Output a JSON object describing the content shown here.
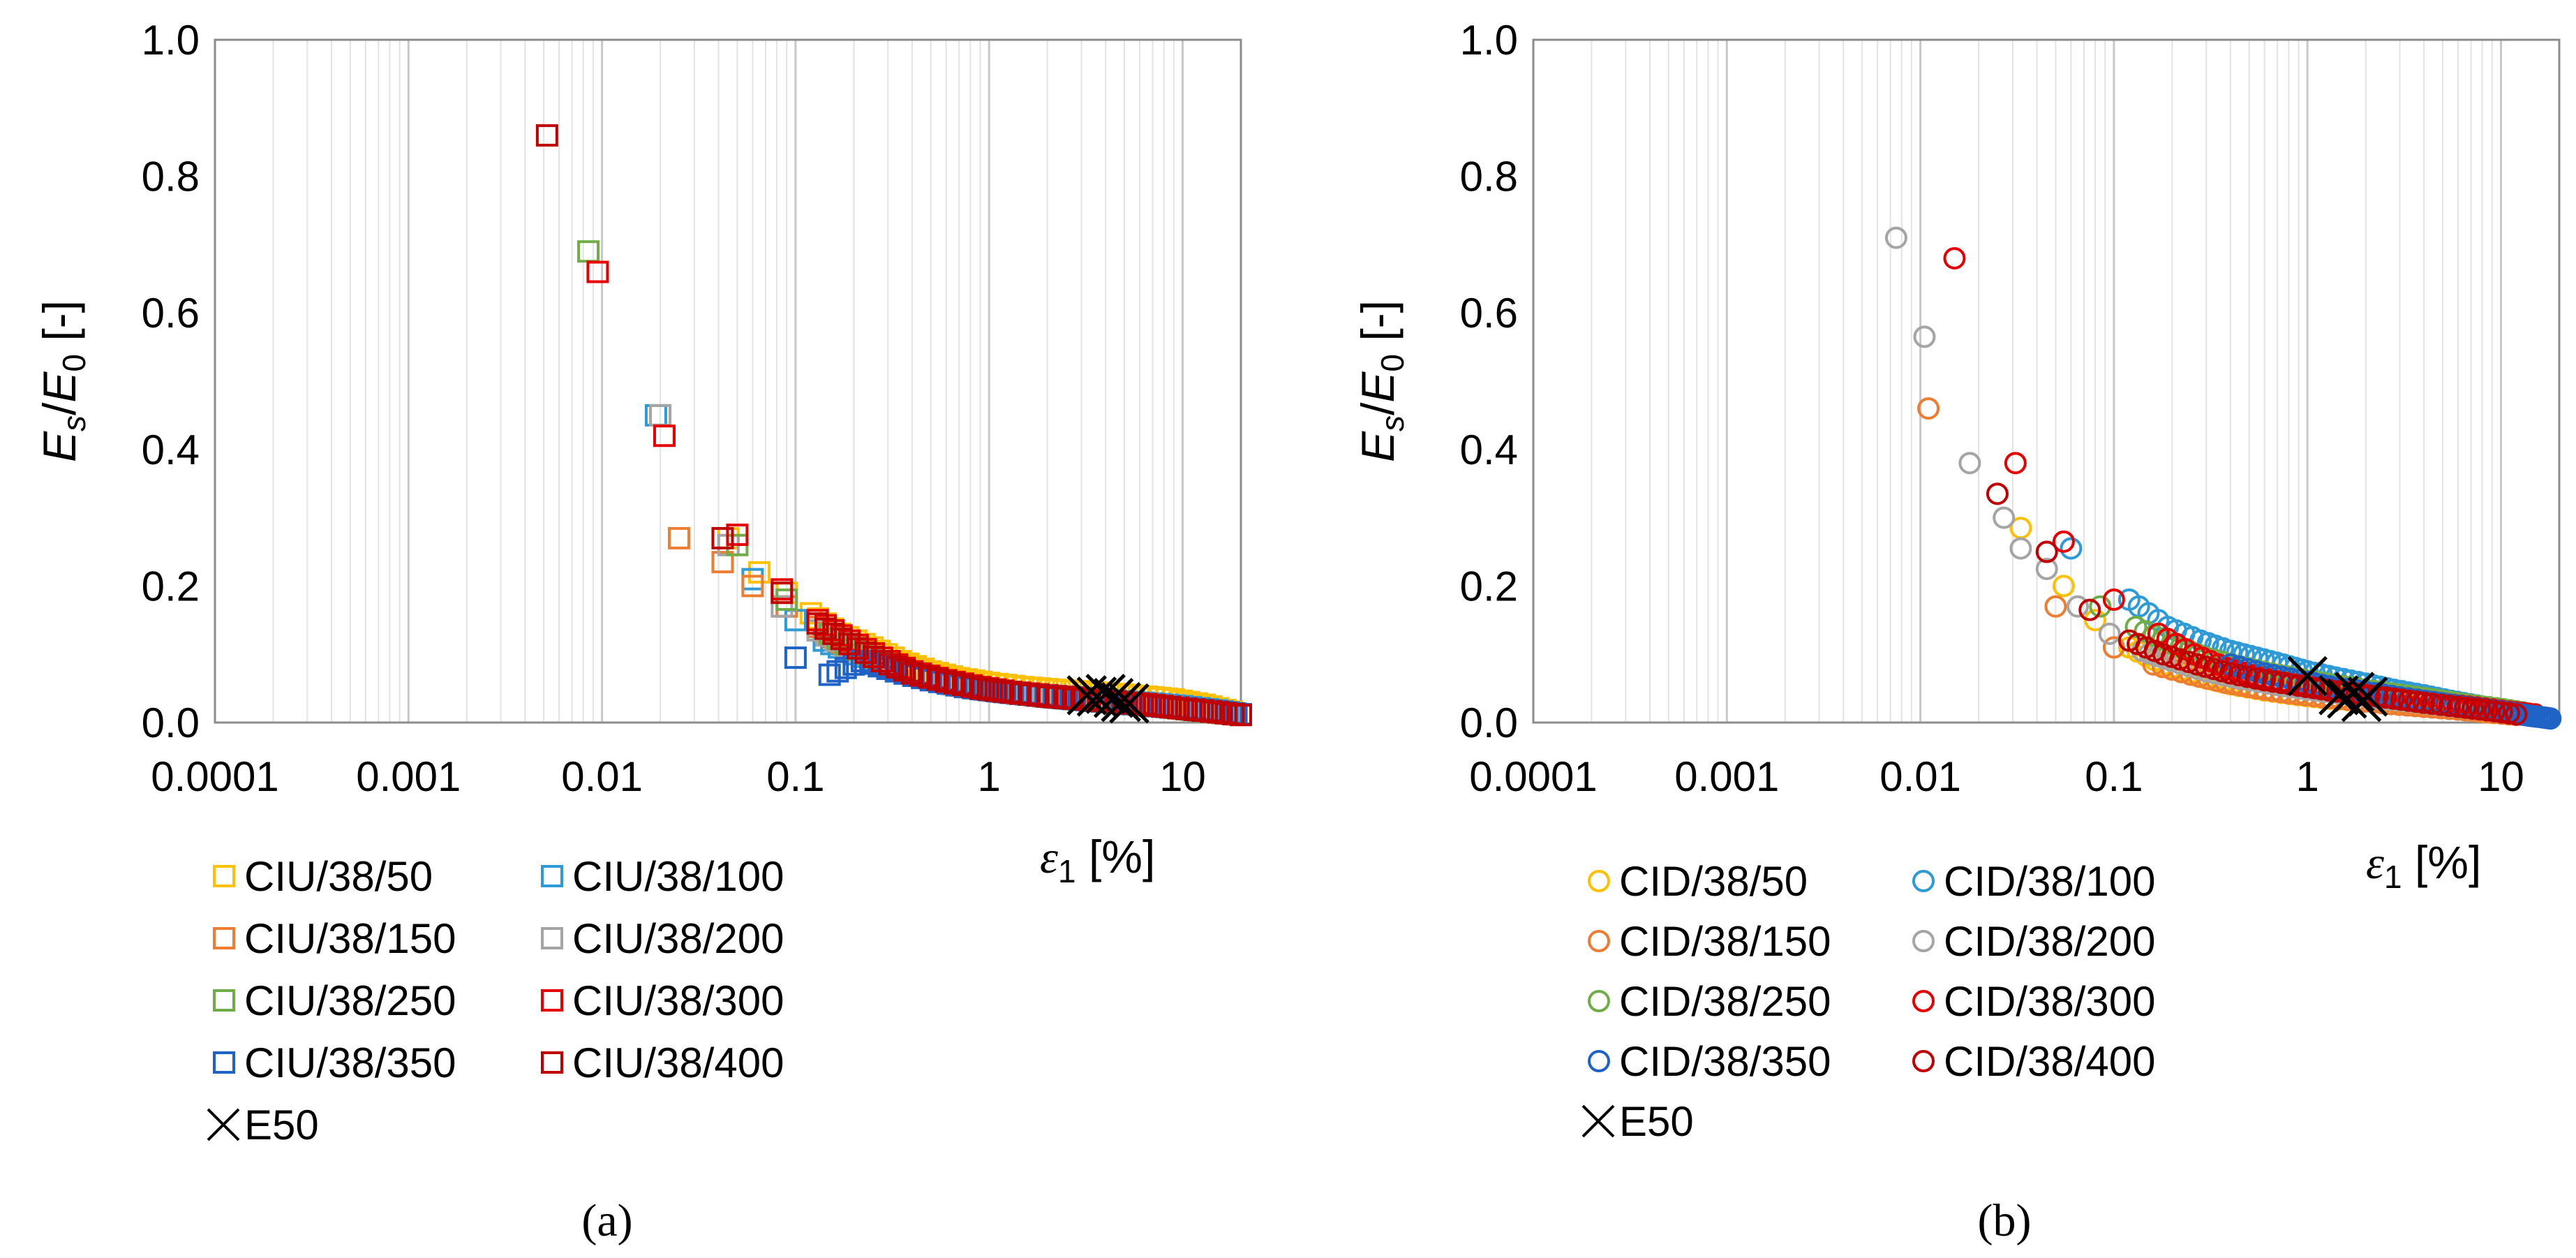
{
  "chart_data": [
    {
      "panel": "a",
      "caption": "(a)",
      "type": "scatter",
      "xscale": "log",
      "xlim": [
        0.0001,
        20
      ],
      "ylim": [
        0,
        1.0
      ],
      "x_ticks": [
        "0.0001",
        "0.001",
        "0.01",
        "0.1",
        "1",
        "10"
      ],
      "y_ticks": [
        "0.0",
        "0.2",
        "0.4",
        "0.6",
        "0.8",
        "1.0"
      ],
      "ylabel": "Es/E0 [-]",
      "xlabel": "ε1 [%]",
      "marker": "square",
      "legend": [
        "CIU/38/50",
        "CIU/38/100",
        "CIU/38/150",
        "CIU/38/200",
        "CIU/38/250",
        "CIU/38/300",
        "CIU/38/350",
        "CIU/38/400",
        "E50"
      ],
      "series": [
        {
          "name": "CIU/38/50",
          "color": "#FFC000",
          "x": [
            0.045,
            0.065,
            0.09,
            0.12,
            0.17,
            0.25,
            0.35,
            0.5,
            0.7,
            1.0,
            1.5,
            2.2,
            3.2,
            4.5,
            6.5,
            9,
            13,
            18
          ],
          "y": [
            0.27,
            0.22,
            0.19,
            0.16,
            0.13,
            0.11,
            0.09,
            0.075,
            0.065,
            0.058,
            0.052,
            0.048,
            0.045,
            0.042,
            0.038,
            0.034,
            0.026,
            0.016
          ]
        },
        {
          "name": "CIU/38/100",
          "color": "#2E9BD6",
          "x": [
            0.019,
            0.06,
            0.1,
            0.14,
            0.2,
            0.3,
            0.45,
            0.65,
            0.9,
            1.3,
            2,
            3,
            4.5,
            7,
            10,
            15,
            20
          ],
          "y": [
            0.45,
            0.21,
            0.15,
            0.12,
            0.1,
            0.085,
            0.07,
            0.058,
            0.05,
            0.044,
            0.04,
            0.036,
            0.032,
            0.028,
            0.024,
            0.018,
            0.012
          ]
        },
        {
          "name": "CIU/38/150",
          "color": "#ED7D31",
          "x": [
            0.025,
            0.042,
            0.06,
            0.09,
            0.13,
            0.19,
            0.28,
            0.4,
            0.6,
            0.85,
            1.2,
            1.8,
            2.6,
            3.8,
            5.5,
            8,
            12,
            18
          ],
          "y": [
            0.27,
            0.235,
            0.2,
            0.17,
            0.14,
            0.11,
            0.09,
            0.072,
            0.06,
            0.05,
            0.045,
            0.04,
            0.036,
            0.032,
            0.028,
            0.024,
            0.019,
            0.013
          ]
        },
        {
          "name": "CIU/38/200",
          "color": "#A5A5A5",
          "x": [
            0.02,
            0.045,
            0.085,
            0.13,
            0.2,
            0.3,
            0.45,
            0.65,
            0.95,
            1.4,
            2.1,
            3,
            4.5,
            6.5,
            9.5,
            14,
            19
          ],
          "y": [
            0.45,
            0.26,
            0.17,
            0.135,
            0.105,
            0.085,
            0.068,
            0.056,
            0.048,
            0.042,
            0.037,
            0.033,
            0.029,
            0.025,
            0.021,
            0.016,
            0.012
          ]
        },
        {
          "name": "CIU/38/250",
          "color": "#70AD47",
          "x": [
            0.0085,
            0.05,
            0.09,
            0.15,
            0.22,
            0.33,
            0.5,
            0.75,
            1.1,
            1.6,
            2.4,
            3.5,
            5,
            7.5,
            11,
            16
          ],
          "y": [
            0.69,
            0.26,
            0.18,
            0.13,
            0.1,
            0.08,
            0.065,
            0.054,
            0.046,
            0.041,
            0.036,
            0.032,
            0.028,
            0.024,
            0.019,
            0.014
          ]
        },
        {
          "name": "CIU/38/300",
          "color": "#E60000",
          "x": [
            0.0095,
            0.021,
            0.05,
            0.085,
            0.13,
            0.19,
            0.28,
            0.4,
            0.6,
            0.9,
            1.3,
            2,
            3,
            4.5,
            6.5,
            9.5,
            14,
            20
          ],
          "y": [
            0.66,
            0.42,
            0.275,
            0.195,
            0.15,
            0.12,
            0.095,
            0.075,
            0.062,
            0.052,
            0.045,
            0.04,
            0.035,
            0.031,
            0.027,
            0.022,
            0.017,
            0.012
          ]
        },
        {
          "name": "CIU/38/350",
          "color": "#1F63C6",
          "x": [
            0.1,
            0.15,
            0.22,
            0.33,
            0.5,
            0.75,
            1.1,
            1.6,
            2.4,
            3.5,
            5,
            7.5,
            11,
            16,
            20
          ],
          "y": [
            0.095,
            0.07,
            0.09,
            0.075,
            0.062,
            0.052,
            0.046,
            0.041,
            0.036,
            0.032,
            0.028,
            0.024,
            0.02,
            0.015,
            0.012
          ]
        },
        {
          "name": "CIU/38/400",
          "color": "#C00000",
          "x": [
            0.0052,
            0.042,
            0.085,
            0.13,
            0.19,
            0.28,
            0.4,
            0.6,
            0.9,
            1.3,
            2,
            3,
            4.5,
            6.5,
            9.5,
            14,
            20
          ],
          "y": [
            0.86,
            0.27,
            0.19,
            0.145,
            0.115,
            0.09,
            0.072,
            0.06,
            0.05,
            0.044,
            0.038,
            0.034,
            0.03,
            0.026,
            0.021,
            0.016,
            0.011
          ]
        },
        {
          "name": "E50",
          "color": "#000000",
          "marker": "x",
          "x": [
            3.2,
            3.6,
            4.0,
            4.4,
            4.8,
            5.3
          ],
          "y": [
            0.04,
            0.038,
            0.042,
            0.036,
            0.03,
            0.028
          ]
        }
      ]
    },
    {
      "panel": "b",
      "caption": "(b)",
      "type": "scatter",
      "xscale": "log",
      "xlim": [
        0.0001,
        20
      ],
      "ylim": [
        0,
        1.0
      ],
      "x_ticks": [
        "0.0001",
        "0.001",
        "0.01",
        "0.1",
        "1",
        "10"
      ],
      "y_ticks": [
        "0.0",
        "0.2",
        "0.4",
        "0.6",
        "0.8",
        "1.0"
      ],
      "ylabel": "Es/E0 [-]",
      "xlabel": "ε1 [%]",
      "marker": "circle",
      "legend": [
        "CID/38/50",
        "CID/38/100",
        "CID/38/150",
        "CID/38/200",
        "CID/38/250",
        "CID/38/300",
        "CID/38/350",
        "CID/38/400",
        "E50"
      ],
      "series": [
        {
          "name": "CID/38/50",
          "color": "#FFC000",
          "x": [
            0.033,
            0.055,
            0.08,
            0.12,
            0.18,
            0.27,
            0.4,
            0.6,
            0.9,
            1.3,
            2,
            3,
            4.5,
            6.5,
            9
          ],
          "y": [
            0.285,
            0.2,
            0.15,
            0.11,
            0.085,
            0.068,
            0.056,
            0.047,
            0.04,
            0.035,
            0.031,
            0.027,
            0.023,
            0.019,
            0.014
          ]
        },
        {
          "name": "CID/38/100",
          "color": "#2E9BD6",
          "x": [
            0.06,
            0.12,
            0.19,
            0.28,
            0.4,
            0.55,
            0.75,
            1.0,
            1.4,
            2,
            2.8,
            4,
            5.5,
            7.5,
            10
          ],
          "y": [
            0.255,
            0.18,
            0.14,
            0.12,
            0.105,
            0.095,
            0.085,
            0.075,
            0.066,
            0.057,
            0.048,
            0.04,
            0.032,
            0.025,
            0.018
          ]
        },
        {
          "name": "CID/38/150",
          "color": "#ED7D31",
          "x": [
            0.011,
            0.05,
            0.1,
            0.16,
            0.25,
            0.38,
            0.55,
            0.8,
            1.2,
            1.8,
            2.7,
            4,
            6,
            8.5,
            12
          ],
          "y": [
            0.46,
            0.17,
            0.11,
            0.085,
            0.07,
            0.058,
            0.05,
            0.043,
            0.037,
            0.032,
            0.027,
            0.023,
            0.019,
            0.015,
            0.011
          ]
        },
        {
          "name": "CID/38/200",
          "color": "#A5A5A5",
          "x": [
            0.0075,
            0.0105,
            0.018,
            0.027,
            0.033,
            0.045,
            0.065,
            0.095,
            0.14,
            0.2,
            0.3,
            0.45,
            0.7,
            1,
            1.5,
            2.2,
            3.3,
            5,
            7.5,
            11
          ],
          "y": [
            0.71,
            0.565,
            0.38,
            0.3,
            0.255,
            0.225,
            0.17,
            0.13,
            0.105,
            0.09,
            0.075,
            0.064,
            0.055,
            0.048,
            0.042,
            0.036,
            0.031,
            0.025,
            0.02,
            0.015
          ]
        },
        {
          "name": "CID/38/250",
          "color": "#70AD47",
          "x": [
            0.085,
            0.13,
            0.2,
            0.3,
            0.45,
            0.65,
            0.95,
            1.4,
            2,
            3,
            4.5,
            6.5,
            9.5,
            13
          ],
          "y": [
            0.17,
            0.14,
            0.115,
            0.095,
            0.082,
            0.072,
            0.063,
            0.055,
            0.048,
            0.041,
            0.034,
            0.027,
            0.021,
            0.015
          ]
        },
        {
          "name": "CID/38/300",
          "color": "#E60000",
          "x": [
            0.015,
            0.031,
            0.055,
            0.1,
            0.17,
            0.26,
            0.38,
            0.55,
            0.8,
            1.2,
            1.7,
            2.5,
            3.6,
            5.2,
            7.5,
            11,
            15
          ],
          "y": [
            0.68,
            0.38,
            0.265,
            0.18,
            0.13,
            0.1,
            0.08,
            0.067,
            0.058,
            0.05,
            0.044,
            0.038,
            0.033,
            0.027,
            0.022,
            0.016,
            0.012
          ]
        },
        {
          "name": "CID/38/350",
          "color": "#1F63C6",
          "x": [
            0.4,
            0.6,
            0.9,
            1.3,
            2,
            3,
            4.5,
            6.5,
            9.5,
            12,
            14,
            16,
            18
          ],
          "y": [
            0.085,
            0.072,
            0.062,
            0.053,
            0.045,
            0.037,
            0.03,
            0.023,
            0.017,
            0.013,
            0.01,
            0.008,
            0.006
          ]
        },
        {
          "name": "CID/38/400",
          "color": "#C00000",
          "x": [
            0.025,
            0.045,
            0.075,
            0.12,
            0.18,
            0.27,
            0.4,
            0.6,
            0.9,
            1.3,
            1.9,
            2.8,
            4,
            6,
            8.5,
            12
          ],
          "y": [
            0.335,
            0.25,
            0.165,
            0.12,
            0.1,
            0.085,
            0.072,
            0.062,
            0.054,
            0.047,
            0.041,
            0.035,
            0.029,
            0.023,
            0.018,
            0.012
          ]
        },
        {
          "name": "E50",
          "color": "#000000",
          "marker": "x",
          "x": [
            1.0,
            1.45,
            1.6,
            1.75,
            1.9,
            2.05
          ],
          "y": [
            0.068,
            0.04,
            0.035,
            0.045,
            0.03,
            0.038
          ]
        }
      ]
    }
  ]
}
